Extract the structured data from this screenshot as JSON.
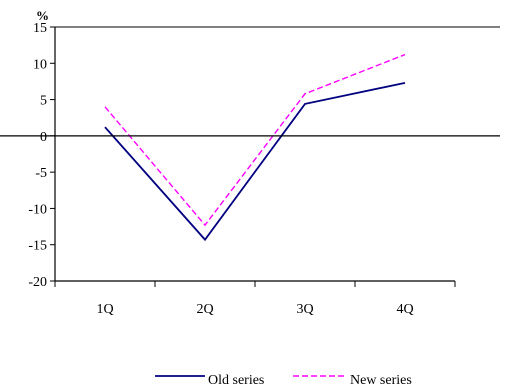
{
  "chart_data": {
    "type": "line",
    "ylabel": "%",
    "categories": [
      "1Q",
      "2Q",
      "3Q",
      "4Q"
    ],
    "ylim": [
      -20,
      15
    ],
    "yticks": [
      15,
      10,
      5,
      0,
      -5,
      -10,
      -15,
      -20
    ],
    "yticks_labels": [
      "15",
      "10",
      "5",
      "0",
      "-5",
      "-10",
      "-15",
      "-20"
    ],
    "grid": false,
    "legend_position": "bottom",
    "series": [
      {
        "name": "Old series",
        "values": [
          1.2,
          -14.3,
          4.4,
          7.3
        ],
        "color": "#000080",
        "style": "solid"
      },
      {
        "name": "New series",
        "values": [
          4.0,
          -12.3,
          5.8,
          11.2
        ],
        "color": "#ff00ff",
        "style": "dashed"
      }
    ]
  }
}
